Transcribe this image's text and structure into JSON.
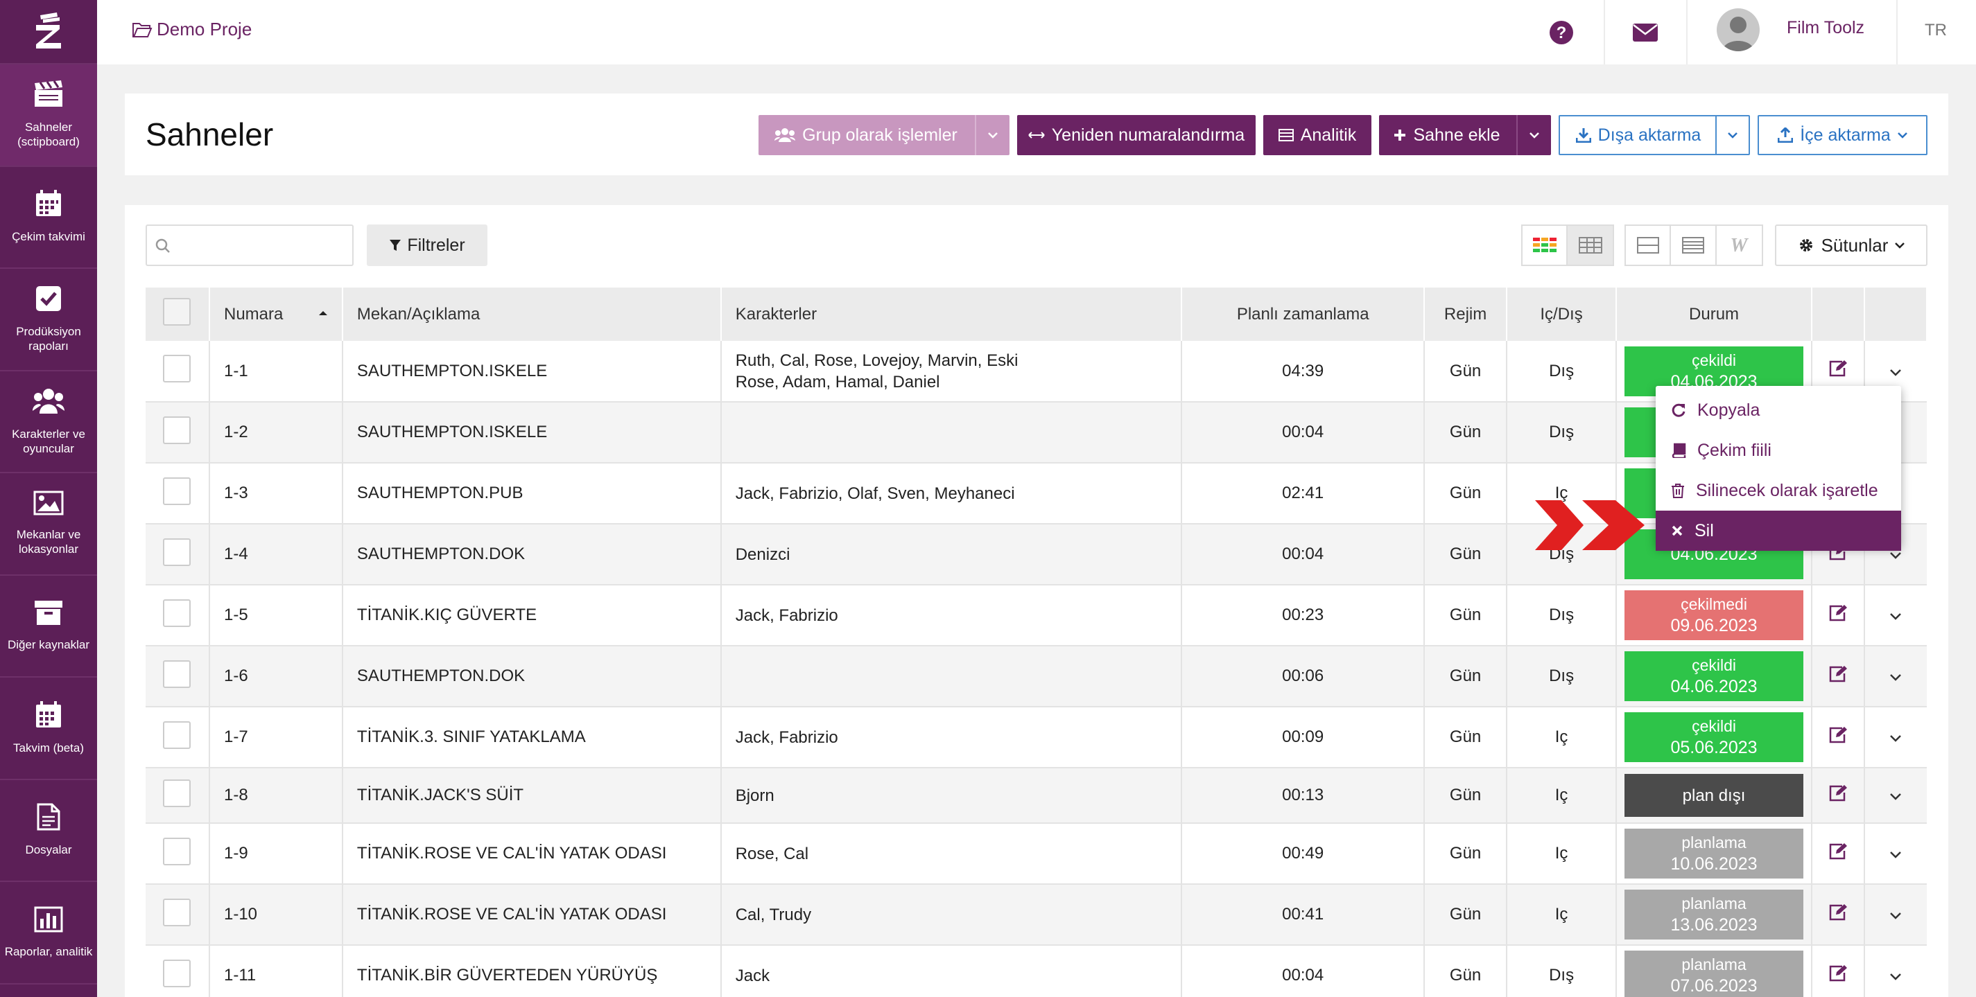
{
  "sidebar": {
    "items": [
      {
        "label": "Sahneler (sctipboard)",
        "icon": "clapperboard-icon"
      },
      {
        "label": "Çekim takvimi",
        "icon": "calendar-icon"
      },
      {
        "label": "Prodüksiyon rapoları",
        "icon": "checkbox-icon"
      },
      {
        "label": "Karakterler ve oyuncular",
        "icon": "users-icon"
      },
      {
        "label": "Mekanlar ve lokasyonlar",
        "icon": "image-icon"
      },
      {
        "label": "Diğer kaynaklar",
        "icon": "archive-icon"
      },
      {
        "label": "Takvim (beta)",
        "icon": "calendar-beta-icon"
      },
      {
        "label": "Dosyalar",
        "icon": "file-icon"
      },
      {
        "label": "Raporlar, analitik",
        "icon": "bar-chart-icon"
      }
    ]
  },
  "topbar": {
    "project": "Demo Proje",
    "user": "Film Toolz",
    "lang": "TR"
  },
  "page": {
    "title": "Sahneler"
  },
  "toolbar": {
    "group_ops": "Grup olarak işlemler",
    "renumber": "Yeniden numaralandırma",
    "analytics": "Analitik",
    "add_scene": "Sahne ekle",
    "export": "Dışa aktarma",
    "import": "İçe aktarma"
  },
  "filters": {
    "search_placeholder": "",
    "filter_label": "Filtreler",
    "columns_label": "Sütunlar"
  },
  "table": {
    "headers": {
      "number": "Numara",
      "location": "Mekan/Açıklama",
      "characters": "Karakterler",
      "timing": "Planlı zamanlama",
      "regime": "Rejim",
      "inout": "Iç/Dış",
      "status": "Durum"
    },
    "rows": [
      {
        "num": "1-1",
        "loc": "SAUTHEMPTON.ISKELE",
        "chars": "Ruth, Cal, Rose, Lovejoy, Marvin, Eski\nRose, Adam, Hamal, Daniel",
        "time": "04:39",
        "regime": "Gün",
        "io": "Dış",
        "status": "çekildi",
        "date": "04.06.2023",
        "color": "green"
      },
      {
        "num": "1-2",
        "loc": "SAUTHEMPTON.ISKELE",
        "chars": "",
        "time": "00:04",
        "regime": "Gün",
        "io": "Dış",
        "status": "",
        "date": "",
        "color": "green"
      },
      {
        "num": "1-3",
        "loc": "SAUTHEMPTON.PUB",
        "chars": "Jaсk, Fabrizio, Olaf, Sven, Meyhaneci",
        "time": "02:41",
        "regime": "Gün",
        "io": "Iç",
        "status": "",
        "date": "",
        "color": "green"
      },
      {
        "num": "1-4",
        "loc": "SAUTHEMPTON.DOK",
        "chars": "Denizci",
        "time": "00:04",
        "regime": "Gün",
        "io": "Dış",
        "status": "",
        "date": "04.06.2023",
        "color": "green"
      },
      {
        "num": "1-5",
        "loc": "TİTANİK.KIÇ GÜVERTE",
        "chars": "Jaсk, Fabrizio",
        "time": "00:23",
        "regime": "Gün",
        "io": "Dış",
        "status": "çekilmedi",
        "date": "09.06.2023",
        "color": "red"
      },
      {
        "num": "1-6",
        "loc": "SAUTHEMPTON.DOK",
        "chars": "",
        "time": "00:06",
        "regime": "Gün",
        "io": "Dış",
        "status": "çekildi",
        "date": "04.06.2023",
        "color": "green"
      },
      {
        "num": "1-7",
        "loc": "TİTANİK.3. SINIF YATAKLAMA",
        "chars": "Jaсk, Fabrizio",
        "time": "00:09",
        "regime": "Gün",
        "io": "Iç",
        "status": "çekildi",
        "date": "05.06.2023",
        "color": "green"
      },
      {
        "num": "1-8",
        "loc": "TİTANİK.JACK'S SÜİT",
        "chars": "Bjorn",
        "time": "00:13",
        "regime": "Gün",
        "io": "Iç",
        "status": "plan dışı",
        "date": "",
        "color": "dark"
      },
      {
        "num": "1-9",
        "loc": "TİTANİK.ROSE VE CAL'İN YATAK ODASI",
        "chars": "Rose, Cal",
        "time": "00:49",
        "regime": "Gün",
        "io": "Iç",
        "status": "planlama",
        "date": "10.06.2023",
        "color": "grey"
      },
      {
        "num": "1-10",
        "loc": "TİTANİK.ROSE VE CAL'İN YATAK ODASI",
        "chars": "Cal, Trudy",
        "time": "00:41",
        "regime": "Gün",
        "io": "Iç",
        "status": "planlama",
        "date": "13.06.2023",
        "color": "grey"
      },
      {
        "num": "1-11",
        "loc": "TİTANİK.BİR GÜVERTEDEN YÜRÜYÜŞ",
        "chars": "Jaсk",
        "time": "00:04",
        "regime": "Gün",
        "io": "Dış",
        "status": "planlama",
        "date": "07.06.2023",
        "color": "grey"
      }
    ]
  },
  "context_menu": {
    "items": [
      {
        "label": "Kopyala",
        "icon": "refresh-icon"
      },
      {
        "label": "Çekim fiili",
        "icon": "book-icon"
      },
      {
        "label": "Silinecek olarak işaretle",
        "icon": "trash-icon"
      },
      {
        "label": "Sil",
        "icon": "close-icon"
      }
    ]
  },
  "colors": {
    "brand": "#6a2363",
    "sidebar": "#5c1f57",
    "shot": "#2ec449",
    "not_shot": "#e57272",
    "off_plan": "#4b4b4b",
    "planning": "#a8a8a8",
    "accent_blue": "#2a72c2",
    "arrow_red": "#e02020"
  }
}
